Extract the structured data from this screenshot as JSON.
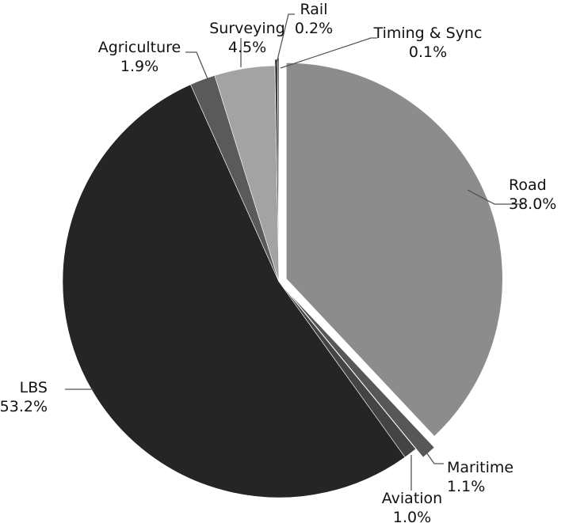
{
  "chart_data": {
    "type": "pie",
    "title": "",
    "slices": [
      {
        "name": "Road",
        "value": 38.0,
        "label": "38.0%",
        "color": "#8c8c8c"
      },
      {
        "name": "Maritime",
        "value": 1.1,
        "label": "1.1%",
        "color": "#575757"
      },
      {
        "name": "Aviation",
        "value": 1.0,
        "label": "1.0%",
        "color": "#444444"
      },
      {
        "name": "LBS",
        "value": 53.2,
        "label": "53.2%",
        "color": "#252525"
      },
      {
        "name": "Agriculture",
        "value": 1.9,
        "label": "1.9%",
        "color": "#5a5a5a"
      },
      {
        "name": "Surveying",
        "value": 4.5,
        "label": "4.5%",
        "color": "#a3a3a3"
      },
      {
        "name": "Rail",
        "value": 0.2,
        "label": "0.2%",
        "color": "#3a3a3a"
      },
      {
        "name": "Timing & Sync",
        "value": 0.1,
        "label": "0.1%",
        "color": "#2a2a2a"
      }
    ],
    "start_angle_deg": 0,
    "direction": "clockwise",
    "exploded": [
      "Road",
      "Maritime",
      "LBS",
      "Surveying",
      "Rail",
      "Timing & Sync"
    ],
    "legend": "none",
    "labels": "outside-with-leader-lines"
  }
}
